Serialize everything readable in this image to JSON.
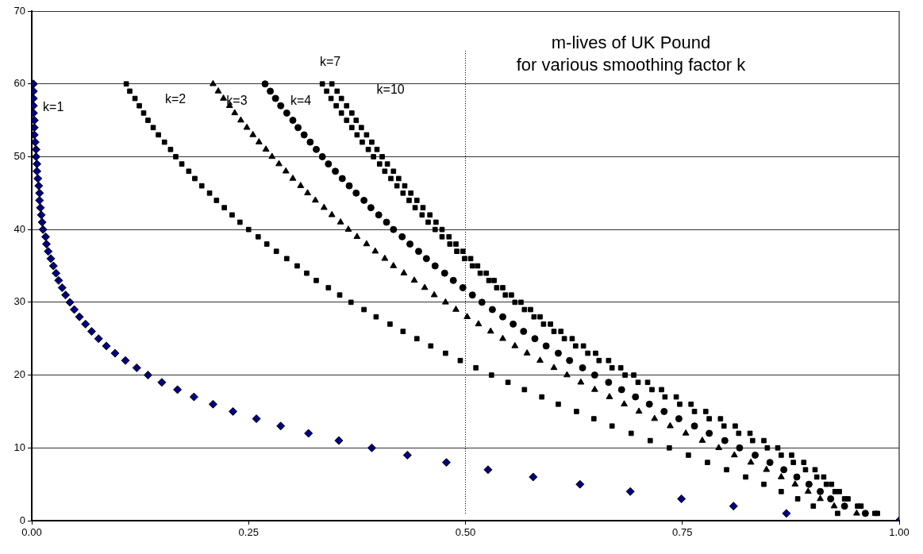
{
  "chart_data": {
    "type": "scatter",
    "title": "m-lives of UK Pound",
    "subtitle": "for various smoothing factor k",
    "xlim": [
      0,
      1
    ],
    "ylim": [
      0,
      70
    ],
    "xticks": [
      {
        "value": 0,
        "label": "0.00"
      },
      {
        "value": 0.25,
        "label": "0.25"
      },
      {
        "value": 0.5,
        "label": "0.50"
      },
      {
        "value": 0.75,
        "label": "0.75"
      },
      {
        "value": 1,
        "label": "1.00"
      }
    ],
    "yticks": [
      0,
      10,
      20,
      30,
      40,
      50,
      60,
      70
    ],
    "grid": "y",
    "legend": false,
    "ref_lines": [
      {
        "axis": "x",
        "value": 0.5,
        "line_style": "dotted",
        "color": "#000000"
      }
    ],
    "series": [
      {
        "name": "k=1",
        "color": "#000080",
        "marker": "diamond",
        "x": [
          1.0,
          0.87,
          0.809,
          0.749,
          0.69,
          0.632,
          0.578,
          0.526,
          0.478,
          0.433,
          0.392,
          0.354,
          0.319,
          0.287,
          0.259,
          0.232,
          0.209,
          0.187,
          0.168,
          0.15,
          0.134,
          0.121,
          0.108,
          0.096,
          0.086,
          0.077,
          0.069,
          0.062,
          0.055,
          0.049,
          0.044,
          0.039,
          0.035,
          0.031,
          0.028,
          0.025,
          0.022,
          0.019,
          0.017,
          0.016,
          0.013,
          0.012,
          0.011,
          0.01,
          0.009,
          0.009,
          0.008,
          0.007,
          0.006,
          0.006,
          0.005,
          0.005,
          0.004,
          0.003,
          0.003,
          0.003,
          0.002,
          0.002,
          0.002,
          0.002,
          0.002
        ],
        "values": [
          0,
          1,
          2,
          3,
          4,
          5,
          6,
          7,
          8,
          9,
          10,
          11,
          12,
          13,
          14,
          15,
          16,
          17,
          18,
          19,
          20,
          21,
          22,
          23,
          24,
          25,
          26,
          27,
          28,
          29,
          30,
          31,
          32,
          33,
          34,
          35,
          36,
          37,
          38,
          39,
          40,
          41,
          42,
          43,
          44,
          45,
          46,
          47,
          48,
          49,
          50,
          51,
          52,
          53,
          54,
          55,
          56,
          57,
          58,
          59,
          60
        ]
      },
      {
        "name": "k=2",
        "color": "#000000",
        "marker": "square",
        "x": [
          0.929,
          0.901,
          0.883,
          0.864,
          0.844,
          0.823,
          0.801,
          0.779,
          0.757,
          0.735,
          0.713,
          0.691,
          0.669,
          0.648,
          0.628,
          0.607,
          0.588,
          0.568,
          0.549,
          0.53,
          0.512,
          0.494,
          0.477,
          0.46,
          0.444,
          0.428,
          0.413,
          0.397,
          0.383,
          0.368,
          0.355,
          0.342,
          0.328,
          0.317,
          0.306,
          0.294,
          0.282,
          0.271,
          0.261,
          0.25,
          0.24,
          0.231,
          0.222,
          0.213,
          0.205,
          0.196,
          0.188,
          0.181,
          0.173,
          0.166,
          0.16,
          0.153,
          0.146,
          0.14,
          0.134,
          0.129,
          0.124,
          0.119,
          0.113,
          0.109
        ],
        "values": [
          1,
          2,
          3,
          4,
          5,
          6,
          7,
          8,
          9,
          10,
          11,
          12,
          13,
          14,
          15,
          16,
          17,
          18,
          19,
          20,
          21,
          22,
          23,
          24,
          25,
          26,
          27,
          28,
          29,
          30,
          31,
          32,
          33,
          34,
          35,
          36,
          37,
          38,
          39,
          40,
          41,
          42,
          43,
          44,
          45,
          46,
          47,
          48,
          49,
          50,
          51,
          52,
          53,
          54,
          55,
          56,
          57,
          58,
          59,
          60
        ]
      },
      {
        "name": "k=3",
        "color": "#000000",
        "marker": "triangle",
        "x": [
          0.951,
          0.925,
          0.909,
          0.895,
          0.88,
          0.864,
          0.847,
          0.829,
          0.81,
          0.792,
          0.773,
          0.754,
          0.736,
          0.718,
          0.7,
          0.683,
          0.666,
          0.649,
          0.633,
          0.617,
          0.602,
          0.586,
          0.571,
          0.557,
          0.543,
          0.529,
          0.515,
          0.502,
          0.489,
          0.477,
          0.464,
          0.453,
          0.441,
          0.429,
          0.417,
          0.407,
          0.396,
          0.386,
          0.375,
          0.365,
          0.356,
          0.346,
          0.337,
          0.327,
          0.318,
          0.31,
          0.301,
          0.293,
          0.285,
          0.277,
          0.27,
          0.262,
          0.255,
          0.248,
          0.241,
          0.234,
          0.228,
          0.221,
          0.215,
          0.209
        ],
        "values": [
          1,
          2,
          3,
          4,
          5,
          6,
          7,
          8,
          9,
          10,
          11,
          12,
          13,
          14,
          15,
          16,
          17,
          18,
          19,
          20,
          21,
          22,
          23,
          24,
          25,
          26,
          27,
          28,
          29,
          30,
          31,
          32,
          33,
          34,
          35,
          36,
          37,
          38,
          39,
          40,
          41,
          42,
          43,
          44,
          45,
          46,
          47,
          48,
          49,
          50,
          51,
          52,
          53,
          54,
          55,
          56,
          57,
          58,
          59,
          60
        ]
      },
      {
        "name": "k=4",
        "color": "#000000",
        "marker": "circle",
        "x": [
          0.961,
          0.937,
          0.921,
          0.909,
          0.896,
          0.882,
          0.867,
          0.851,
          0.834,
          0.816,
          0.799,
          0.781,
          0.764,
          0.746,
          0.729,
          0.712,
          0.696,
          0.68,
          0.665,
          0.649,
          0.635,
          0.62,
          0.607,
          0.593,
          0.58,
          0.567,
          0.555,
          0.543,
          0.531,
          0.519,
          0.508,
          0.497,
          0.486,
          0.476,
          0.465,
          0.455,
          0.446,
          0.436,
          0.427,
          0.417,
          0.409,
          0.4,
          0.391,
          0.383,
          0.374,
          0.366,
          0.358,
          0.35,
          0.342,
          0.335,
          0.328,
          0.321,
          0.314,
          0.307,
          0.301,
          0.294,
          0.287,
          0.281,
          0.275,
          0.269
        ],
        "values": [
          1,
          2,
          3,
          4,
          5,
          6,
          7,
          8,
          9,
          10,
          11,
          12,
          13,
          14,
          15,
          16,
          17,
          18,
          19,
          20,
          21,
          22,
          23,
          24,
          25,
          26,
          27,
          28,
          29,
          30,
          31,
          32,
          33,
          34,
          35,
          36,
          37,
          38,
          39,
          40,
          41,
          42,
          43,
          44,
          45,
          46,
          47,
          48,
          49,
          50,
          51,
          52,
          53,
          54,
          55,
          56,
          57,
          58,
          59,
          60
        ]
      },
      {
        "name": "k=7",
        "color": "#000000",
        "marker": "square",
        "x": [
          0.972,
          0.952,
          0.937,
          0.926,
          0.916,
          0.905,
          0.892,
          0.878,
          0.864,
          0.848,
          0.831,
          0.815,
          0.798,
          0.781,
          0.764,
          0.747,
          0.73,
          0.715,
          0.699,
          0.684,
          0.669,
          0.654,
          0.641,
          0.627,
          0.614,
          0.602,
          0.59,
          0.579,
          0.568,
          0.557,
          0.546,
          0.536,
          0.527,
          0.517,
          0.508,
          0.499,
          0.49,
          0.482,
          0.473,
          0.465,
          0.457,
          0.45,
          0.442,
          0.435,
          0.428,
          0.421,
          0.414,
          0.407,
          0.401,
          0.394,
          0.388,
          0.381,
          0.375,
          0.369,
          0.363,
          0.357,
          0.351,
          0.345,
          0.34,
          0.335
        ],
        "values": [
          1,
          2,
          3,
          4,
          5,
          6,
          7,
          8,
          9,
          10,
          11,
          12,
          13,
          14,
          15,
          16,
          17,
          18,
          19,
          20,
          21,
          22,
          23,
          24,
          25,
          26,
          27,
          28,
          29,
          30,
          31,
          32,
          33,
          34,
          35,
          36,
          37,
          38,
          39,
          40,
          41,
          42,
          43,
          44,
          45,
          46,
          47,
          48,
          49,
          50,
          51,
          52,
          53,
          54,
          55,
          56,
          57,
          58,
          59,
          60
        ]
      },
      {
        "name": "k=10",
        "color": "#000000",
        "marker": "square",
        "x": [
          0.975,
          0.956,
          0.941,
          0.931,
          0.922,
          0.913,
          0.903,
          0.89,
          0.876,
          0.86,
          0.844,
          0.828,
          0.811,
          0.794,
          0.777,
          0.76,
          0.743,
          0.726,
          0.71,
          0.694,
          0.679,
          0.665,
          0.65,
          0.636,
          0.623,
          0.61,
          0.598,
          0.586,
          0.575,
          0.564,
          0.553,
          0.543,
          0.533,
          0.524,
          0.514,
          0.506,
          0.497,
          0.489,
          0.481,
          0.473,
          0.466,
          0.459,
          0.451,
          0.444,
          0.437,
          0.43,
          0.423,
          0.417,
          0.41,
          0.404,
          0.398,
          0.392,
          0.386,
          0.38,
          0.374,
          0.369,
          0.363,
          0.357,
          0.352,
          0.346
        ],
        "values": [
          1,
          2,
          3,
          4,
          5,
          6,
          7,
          8,
          9,
          10,
          11,
          12,
          13,
          14,
          15,
          16,
          17,
          18,
          19,
          20,
          21,
          22,
          23,
          24,
          25,
          26,
          27,
          28,
          29,
          30,
          31,
          32,
          33,
          34,
          35,
          36,
          37,
          38,
          39,
          40,
          41,
          42,
          43,
          44,
          45,
          46,
          47,
          48,
          49,
          50,
          51,
          52,
          53,
          54,
          55,
          56,
          57,
          58,
          59,
          60
        ]
      }
    ]
  }
}
